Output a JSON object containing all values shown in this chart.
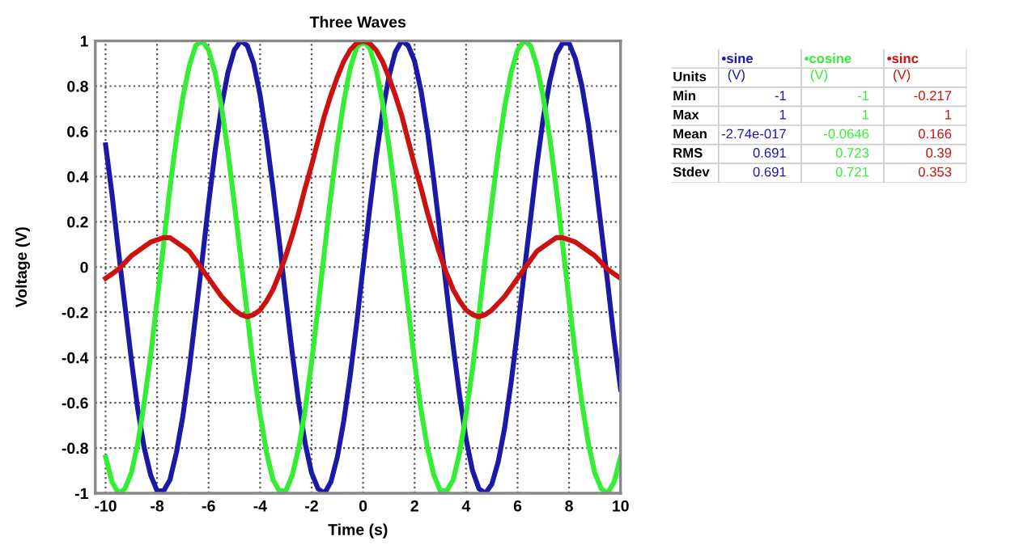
{
  "chart_data": [
    {
      "type": "line",
      "title": "Three Waves",
      "xlabel": "Time (s)",
      "ylabel": "Voltage (V)",
      "x": [
        -10,
        -9.75,
        -9.5,
        -9.25,
        -9,
        -8.75,
        -8.5,
        -8.25,
        -8,
        -7.75,
        -7.5,
        -7.25,
        -7,
        -6.75,
        -6.5,
        -6.25,
        -6,
        -5.75,
        -5.5,
        -5.25,
        -5,
        -4.75,
        -4.5,
        -4.25,
        -4,
        -3.75,
        -3.5,
        -3.25,
        -3,
        -2.75,
        -2.5,
        -2.25,
        -2,
        -1.75,
        -1.5,
        -1.25,
        -1,
        -0.75,
        -0.5,
        -0.25,
        0,
        0.25,
        0.5,
        0.75,
        1,
        1.25,
        1.5,
        1.75,
        2,
        2.25,
        2.5,
        2.75,
        3,
        3.25,
        3.5,
        3.75,
        4,
        4.25,
        4.5,
        4.75,
        5,
        5.25,
        5.5,
        5.75,
        6,
        6.25,
        6.5,
        6.75,
        7,
        7.25,
        7.5,
        7.75,
        8,
        8.25,
        8.5,
        8.75,
        9,
        9.25,
        9.5,
        9.75,
        10
      ],
      "series": [
        {
          "color": "#1a1aa6",
          "values": [
            0.54,
            0.32,
            0.07,
            -0.17,
            -0.41,
            -0.63,
            -0.8,
            -0.92,
            -0.99,
            -0.99,
            -0.94,
            -0.82,
            -0.66,
            -0.45,
            -0.21,
            0.03,
            0.28,
            0.51,
            0.71,
            0.86,
            0.96,
            1.0,
            0.98,
            0.9,
            0.76,
            0.57,
            0.35,
            0.11,
            -0.14,
            -0.38,
            -0.6,
            -0.78,
            -0.91,
            -0.98,
            -1.0,
            -0.95,
            -0.84,
            -0.68,
            -0.48,
            -0.25,
            0,
            0.25,
            0.48,
            0.68,
            0.84,
            0.95,
            1.0,
            0.98,
            0.91,
            0.78,
            0.6,
            0.38,
            0.14,
            -0.11,
            -0.35,
            -0.57,
            -0.76,
            -0.9,
            -0.98,
            -1.0,
            -0.96,
            -0.86,
            -0.71,
            -0.51,
            -0.28,
            -0.03,
            0.21,
            0.45,
            0.66,
            0.82,
            0.94,
            0.99,
            0.99,
            0.92,
            0.8,
            0.63,
            0.41,
            0.17,
            -0.07,
            -0.32,
            -0.54
          ]
        },
        {
          "color": "#33ee33",
          "values": [
            -0.84,
            -0.95,
            -1.0,
            -0.98,
            -0.91,
            -0.78,
            -0.6,
            -0.39,
            -0.15,
            0.1,
            0.35,
            0.57,
            0.75,
            0.89,
            0.98,
            1.0,
            0.96,
            0.86,
            0.71,
            0.51,
            0.28,
            0.04,
            -0.21,
            -0.45,
            -0.65,
            -0.82,
            -0.94,
            -0.99,
            -0.99,
            -0.92,
            -0.8,
            -0.63,
            -0.42,
            -0.18,
            0.07,
            0.32,
            0.54,
            0.73,
            0.88,
            0.97,
            1,
            0.97,
            0.88,
            0.73,
            0.54,
            0.32,
            0.07,
            -0.18,
            -0.42,
            -0.63,
            -0.8,
            -0.92,
            -0.99,
            -0.99,
            -0.94,
            -0.82,
            -0.65,
            -0.45,
            -0.21,
            0.04,
            0.28,
            0.51,
            0.71,
            0.86,
            0.96,
            1.0,
            0.98,
            0.89,
            0.75,
            0.57,
            0.35,
            0.1,
            -0.15,
            -0.39,
            -0.6,
            -0.78,
            -0.91,
            -0.98,
            -1.0,
            -0.95,
            -0.84
          ]
        },
        {
          "color": "#cc1111",
          "values": [
            -0.05,
            -0.03,
            -0.01,
            0.02,
            0.05,
            0.07,
            0.09,
            0.11,
            0.12,
            0.13,
            0.13,
            0.11,
            0.09,
            0.07,
            0.03,
            -0.01,
            -0.05,
            -0.09,
            -0.13,
            -0.16,
            -0.19,
            -0.21,
            -0.22,
            -0.21,
            -0.19,
            -0.15,
            -0.1,
            -0.03,
            0.05,
            0.14,
            0.24,
            0.35,
            0.45,
            0.56,
            0.67,
            0.76,
            0.84,
            0.91,
            0.96,
            0.99,
            1,
            0.99,
            0.96,
            0.91,
            0.84,
            0.76,
            0.67,
            0.56,
            0.45,
            0.35,
            0.24,
            0.14,
            0.05,
            -0.03,
            -0.1,
            -0.15,
            -0.19,
            -0.21,
            -0.22,
            -0.21,
            -0.19,
            -0.16,
            -0.13,
            -0.09,
            -0.05,
            -0.01,
            0.03,
            0.07,
            0.09,
            0.11,
            0.13,
            0.13,
            0.12,
            0.11,
            0.09,
            0.07,
            0.05,
            0.02,
            -0.01,
            -0.03,
            -0.05
          ]
        }
      ],
      "xlim": [
        -10.4,
        10
      ],
      "ylim": [
        -1,
        1
      ],
      "xticks": [
        -10,
        -8,
        -6,
        -4,
        -2,
        0,
        2,
        4,
        6,
        8,
        10
      ],
      "yticks": [
        -1,
        -0.8,
        -0.6,
        -0.4,
        -0.2,
        0,
        0.2,
        0.4,
        0.6,
        0.8,
        1
      ],
      "grid": true,
      "line_style": "solid",
      "legend": false
    },
    {
      "type": "other",
      "categories": [
        "•sine",
        "•cosine",
        "•sinc"
      ],
      "colors": [
        "#1a1aa6",
        "#33ee33",
        "#cc1111"
      ],
      "y_categories": [
        "Units",
        "Min",
        "Max",
        "Mean",
        "RMS",
        "Stdev"
      ],
      "cell_labels": [
        [
          "(V)",
          "(V)",
          "(V)"
        ],
        [
          "-1",
          "-1",
          "-0.217"
        ],
        [
          "1",
          "1",
          "1"
        ],
        [
          "-2.74e-017",
          "-0.0646",
          "0.166"
        ],
        [
          "0.691",
          "0.723",
          "0.39"
        ],
        [
          "0.691",
          "0.721",
          "0.353"
        ]
      ]
    }
  ]
}
